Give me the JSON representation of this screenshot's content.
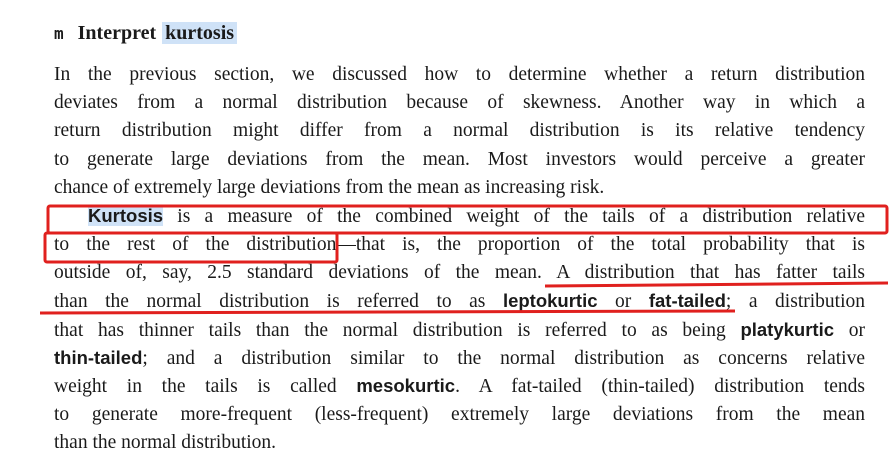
{
  "heading": {
    "marker": "m",
    "title": "Interpret",
    "highlight": "kurtosis"
  },
  "paragraphs": [
    {
      "lines": [
        [
          "In the previous section, we discussed how to determine whether a return distribution"
        ],
        [
          "deviates from a normal distribution because of skewness. Another way in which a"
        ],
        [
          "return distribution might differ from a normal distribution is its relative tendency"
        ],
        [
          "to generate large deviations from the mean. Most investors would perceive a greater"
        ],
        [
          "chance of extremely large deviations from the mean as increasing risk."
        ]
      ]
    },
    {
      "indent": true,
      "lines": [
        [
          {
            "text": "Kurtosis",
            "bold": true,
            "highlight": true
          },
          " is a measure of the combined weight of the tails of a distribution relative"
        ],
        [
          "to the rest of the distribution—that is, the proportion of the total probability that is"
        ],
        [
          "outside of, say, 2.5 standard deviations of the mean. A distribution that has fatter tails"
        ],
        [
          "than the normal distribution is referred to as ",
          {
            "text": "leptokurtic",
            "bold": true
          },
          " or ",
          {
            "text": "fat-tailed",
            "bold": true
          },
          "; a distribution"
        ],
        [
          "that has thinner tails than the normal distribution is referred to as being ",
          {
            "text": "platykurtic",
            "bold": true
          },
          " or"
        ],
        [
          {
            "text": "thin-tailed",
            "bold": true
          },
          "; and a distribution similar to the normal distribution as concerns relative"
        ],
        [
          "weight in the tails is called ",
          {
            "text": "mesokurtic",
            "bold": true
          },
          ". A fat-tailed (thin-tailed) distribution tends"
        ],
        [
          "to generate more-frequent (less-frequent) extremely large deviations from the mean"
        ],
        [
          "than the normal distribution."
        ]
      ]
    }
  ]
}
